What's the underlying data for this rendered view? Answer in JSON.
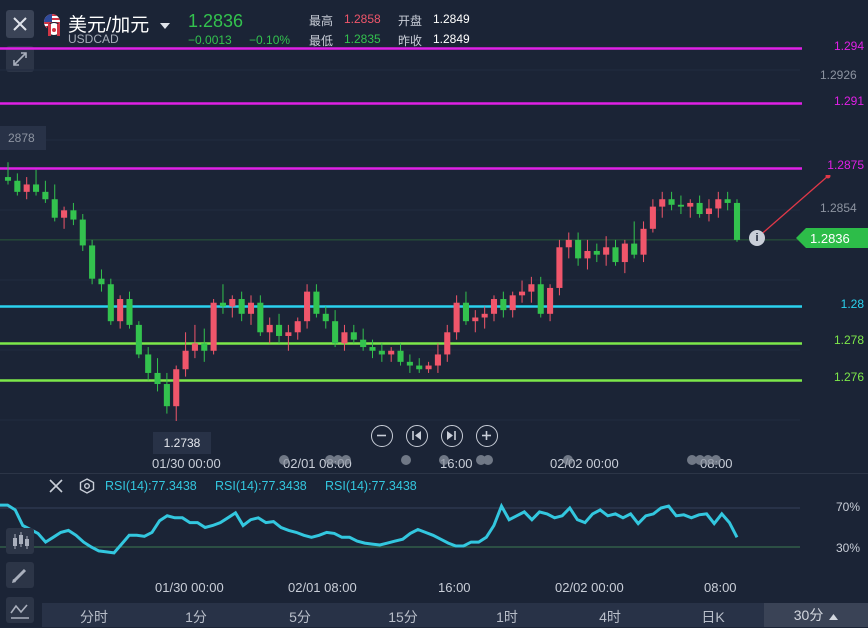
{
  "header": {
    "symbol_name": "美元/加元",
    "symbol_code": "USDCAD",
    "price": "1.2836",
    "change": "−0.0013",
    "change_pct": "−0.10%",
    "high_label": "最高",
    "high_value": "1.2858",
    "open_label": "开盘",
    "open_value": "1.2849",
    "low_label": "最低",
    "low_value": "1.2835",
    "prev_close_label": "昨收",
    "prev_close_value": "1.2849"
  },
  "price_axis": {
    "ticks": [
      "1.2926",
      "1.2854"
    ],
    "left_peek": "2878",
    "min_price_label": "1.2738",
    "current_price_tag": "1.2836"
  },
  "levels": [
    {
      "label": "1.294",
      "color": "#e020e6"
    },
    {
      "label": "1.291",
      "color": "#e020e6"
    },
    {
      "label": "1.2875",
      "color": "#e020e6"
    },
    {
      "label": "1.28",
      "color": "#2ad2ee"
    },
    {
      "label": "1.278",
      "color": "#7de84a"
    },
    {
      "label": "1.276",
      "color": "#7de84a"
    }
  ],
  "time_axis_main": [
    "01/30 00:00",
    "02/01 08:00",
    "16:00",
    "02/02 00:00",
    "08:00"
  ],
  "time_axis_rsi": [
    "01/30 00:00",
    "02/01 08:00",
    "16:00",
    "02/02 00:00",
    "08:00"
  ],
  "controls": {
    "zoom_out": "zoom-out-icon",
    "prev": "skip-prev-icon",
    "next": "skip-next-icon",
    "zoom_in": "zoom-in-icon"
  },
  "rsi": {
    "labels": [
      "RSI(14):77.3438",
      "RSI(14):77.3438",
      "RSI(14):77.3438"
    ],
    "level_high": "70%",
    "level_low": "30%",
    "line_color": "#33c7df",
    "values": [
      73,
      73,
      68,
      52,
      48,
      44,
      35,
      40,
      45,
      47,
      42,
      35,
      30,
      26,
      25,
      24,
      33,
      42,
      42,
      41,
      45,
      57,
      62,
      60,
      60,
      55,
      55,
      50,
      52,
      55,
      60,
      65,
      52,
      58,
      60,
      55,
      56,
      50,
      47,
      45,
      42,
      40,
      42,
      45,
      44,
      40,
      40,
      36,
      34,
      33,
      32,
      34,
      36,
      38,
      44,
      48,
      45,
      42,
      38,
      34,
      31,
      31,
      35,
      35,
      40,
      52,
      72,
      58,
      62,
      66,
      58,
      66,
      64,
      60,
      62,
      70,
      58,
      55,
      64,
      68,
      62,
      64,
      60,
      64,
      54,
      62,
      64,
      70,
      72,
      62,
      63,
      60,
      63,
      64,
      54,
      64,
      55,
      40
    ]
  },
  "timeframes": [
    "分时",
    "1分",
    "5分",
    "15分",
    "1时",
    "4时",
    "日K",
    "30分"
  ],
  "active_timeframe": "30分",
  "chart_data": {
    "type": "candlestick",
    "symbol": "USDCAD",
    "last_price": 1.2836,
    "high": 1.2858,
    "low": 1.2835,
    "open": 1.2849,
    "prev_close": 1.2849,
    "up_color": "#f0566b",
    "down_color": "#33c24e",
    "horizontal_levels": [
      1.294,
      1.291,
      1.2875,
      1.28,
      1.278,
      1.276
    ],
    "ylim": [
      1.2725,
      1.2955
    ],
    "visible_low": 1.2738,
    "candles": [
      {
        "o": 1.287,
        "h": 1.2878,
        "l": 1.2866,
        "c": 1.2868
      },
      {
        "o": 1.2868,
        "h": 1.2872,
        "l": 1.286,
        "c": 1.2862
      },
      {
        "o": 1.2862,
        "h": 1.287,
        "l": 1.2858,
        "c": 1.2866
      },
      {
        "o": 1.2866,
        "h": 1.2874,
        "l": 1.286,
        "c": 1.2862
      },
      {
        "o": 1.2862,
        "h": 1.2868,
        "l": 1.2856,
        "c": 1.2858
      },
      {
        "o": 1.2858,
        "h": 1.2866,
        "l": 1.2846,
        "c": 1.2848
      },
      {
        "o": 1.2848,
        "h": 1.2854,
        "l": 1.2842,
        "c": 1.2852
      },
      {
        "o": 1.2852,
        "h": 1.2856,
        "l": 1.2844,
        "c": 1.2847
      },
      {
        "o": 1.2847,
        "h": 1.285,
        "l": 1.283,
        "c": 1.2833
      },
      {
        "o": 1.2833,
        "h": 1.2836,
        "l": 1.2812,
        "c": 1.2815
      },
      {
        "o": 1.2815,
        "h": 1.282,
        "l": 1.2808,
        "c": 1.2812
      },
      {
        "o": 1.2812,
        "h": 1.2815,
        "l": 1.279,
        "c": 1.2792
      },
      {
        "o": 1.2792,
        "h": 1.2806,
        "l": 1.2788,
        "c": 1.2804
      },
      {
        "o": 1.2804,
        "h": 1.2808,
        "l": 1.2788,
        "c": 1.279
      },
      {
        "o": 1.279,
        "h": 1.2792,
        "l": 1.2772,
        "c": 1.2774
      },
      {
        "o": 1.2774,
        "h": 1.2778,
        "l": 1.276,
        "c": 1.2764
      },
      {
        "o": 1.2764,
        "h": 1.2772,
        "l": 1.2754,
        "c": 1.2758
      },
      {
        "o": 1.2758,
        "h": 1.2764,
        "l": 1.2742,
        "c": 1.2746
      },
      {
        "o": 1.2746,
        "h": 1.2768,
        "l": 1.2738,
        "c": 1.2766
      },
      {
        "o": 1.2766,
        "h": 1.2786,
        "l": 1.2762,
        "c": 1.2776
      },
      {
        "o": 1.2776,
        "h": 1.279,
        "l": 1.2772,
        "c": 1.278
      },
      {
        "o": 1.278,
        "h": 1.2788,
        "l": 1.277,
        "c": 1.2776
      },
      {
        "o": 1.2776,
        "h": 1.2804,
        "l": 1.2774,
        "c": 1.2802
      },
      {
        "o": 1.2802,
        "h": 1.2812,
        "l": 1.2796,
        "c": 1.28
      },
      {
        "o": 1.28,
        "h": 1.2806,
        "l": 1.2794,
        "c": 1.2804
      },
      {
        "o": 1.2804,
        "h": 1.2808,
        "l": 1.2792,
        "c": 1.2796
      },
      {
        "o": 1.2796,
        "h": 1.2806,
        "l": 1.279,
        "c": 1.2802
      },
      {
        "o": 1.2802,
        "h": 1.2806,
        "l": 1.2784,
        "c": 1.2786
      },
      {
        "o": 1.2786,
        "h": 1.2794,
        "l": 1.278,
        "c": 1.279
      },
      {
        "o": 1.279,
        "h": 1.2796,
        "l": 1.278,
        "c": 1.2784
      },
      {
        "o": 1.2784,
        "h": 1.279,
        "l": 1.2776,
        "c": 1.2786
      },
      {
        "o": 1.2786,
        "h": 1.2794,
        "l": 1.2782,
        "c": 1.2792
      },
      {
        "o": 1.2792,
        "h": 1.2812,
        "l": 1.2788,
        "c": 1.2808
      },
      {
        "o": 1.2808,
        "h": 1.2812,
        "l": 1.2794,
        "c": 1.2796
      },
      {
        "o": 1.2796,
        "h": 1.28,
        "l": 1.2788,
        "c": 1.2792
      },
      {
        "o": 1.2792,
        "h": 1.2798,
        "l": 1.2778,
        "c": 1.278
      },
      {
        "o": 1.278,
        "h": 1.279,
        "l": 1.2776,
        "c": 1.2786
      },
      {
        "o": 1.2786,
        "h": 1.279,
        "l": 1.278,
        "c": 1.2782
      },
      {
        "o": 1.2782,
        "h": 1.2788,
        "l": 1.2776,
        "c": 1.2778
      },
      {
        "o": 1.2778,
        "h": 1.2782,
        "l": 1.2772,
        "c": 1.2776
      },
      {
        "o": 1.2776,
        "h": 1.278,
        "l": 1.277,
        "c": 1.2774
      },
      {
        "o": 1.2774,
        "h": 1.2778,
        "l": 1.277,
        "c": 1.2776
      },
      {
        "o": 1.2776,
        "h": 1.278,
        "l": 1.2768,
        "c": 1.277
      },
      {
        "o": 1.277,
        "h": 1.2774,
        "l": 1.2764,
        "c": 1.2768
      },
      {
        "o": 1.2768,
        "h": 1.2772,
        "l": 1.2764,
        "c": 1.2766
      },
      {
        "o": 1.2766,
        "h": 1.277,
        "l": 1.2764,
        "c": 1.2768
      },
      {
        "o": 1.2768,
        "h": 1.278,
        "l": 1.2764,
        "c": 1.2774
      },
      {
        "o": 1.2774,
        "h": 1.279,
        "l": 1.277,
        "c": 1.2786
      },
      {
        "o": 1.2786,
        "h": 1.2806,
        "l": 1.2782,
        "c": 1.2802
      },
      {
        "o": 1.2802,
        "h": 1.2808,
        "l": 1.279,
        "c": 1.2792
      },
      {
        "o": 1.2792,
        "h": 1.2798,
        "l": 1.2786,
        "c": 1.2794
      },
      {
        "o": 1.2794,
        "h": 1.28,
        "l": 1.2788,
        "c": 1.2796
      },
      {
        "o": 1.2796,
        "h": 1.2806,
        "l": 1.2792,
        "c": 1.2804
      },
      {
        "o": 1.2804,
        "h": 1.2808,
        "l": 1.2794,
        "c": 1.2798
      },
      {
        "o": 1.2798,
        "h": 1.2808,
        "l": 1.2794,
        "c": 1.2806
      },
      {
        "o": 1.2806,
        "h": 1.2814,
        "l": 1.2802,
        "c": 1.2808
      },
      {
        "o": 1.2808,
        "h": 1.2816,
        "l": 1.2802,
        "c": 1.2812
      },
      {
        "o": 1.2812,
        "h": 1.2816,
        "l": 1.2794,
        "c": 1.2796
      },
      {
        "o": 1.2796,
        "h": 1.2812,
        "l": 1.2792,
        "c": 1.281
      },
      {
        "o": 1.281,
        "h": 1.2836,
        "l": 1.2806,
        "c": 1.2832
      },
      {
        "o": 1.2832,
        "h": 1.284,
        "l": 1.2826,
        "c": 1.2836
      },
      {
        "o": 1.2836,
        "h": 1.284,
        "l": 1.2822,
        "c": 1.2826
      },
      {
        "o": 1.2826,
        "h": 1.2836,
        "l": 1.282,
        "c": 1.283
      },
      {
        "o": 1.283,
        "h": 1.2834,
        "l": 1.2824,
        "c": 1.2828
      },
      {
        "o": 1.2828,
        "h": 1.2838,
        "l": 1.2822,
        "c": 1.2832
      },
      {
        "o": 1.2832,
        "h": 1.2836,
        "l": 1.2822,
        "c": 1.2824
      },
      {
        "o": 1.2824,
        "h": 1.2836,
        "l": 1.2818,
        "c": 1.2834
      },
      {
        "o": 1.2834,
        "h": 1.2846,
        "l": 1.2826,
        "c": 1.2828
      },
      {
        "o": 1.2828,
        "h": 1.2846,
        "l": 1.2824,
        "c": 1.2842
      },
      {
        "o": 1.2842,
        "h": 1.2858,
        "l": 1.284,
        "c": 1.2854
      },
      {
        "o": 1.2854,
        "h": 1.2862,
        "l": 1.2848,
        "c": 1.2858
      },
      {
        "o": 1.2858,
        "h": 1.2862,
        "l": 1.2852,
        "c": 1.2855
      },
      {
        "o": 1.2855,
        "h": 1.286,
        "l": 1.285,
        "c": 1.2854
      },
      {
        "o": 1.2854,
        "h": 1.2858,
        "l": 1.2848,
        "c": 1.2856
      },
      {
        "o": 1.2856,
        "h": 1.286,
        "l": 1.2848,
        "c": 1.285
      },
      {
        "o": 1.285,
        "h": 1.2858,
        "l": 1.2846,
        "c": 1.2853
      },
      {
        "o": 1.2853,
        "h": 1.2862,
        "l": 1.2848,
        "c": 1.2858
      },
      {
        "o": 1.2858,
        "h": 1.2862,
        "l": 1.2852,
        "c": 1.2856
      },
      {
        "o": 1.2856,
        "h": 1.2858,
        "l": 1.2835,
        "c": 1.2836
      }
    ]
  }
}
